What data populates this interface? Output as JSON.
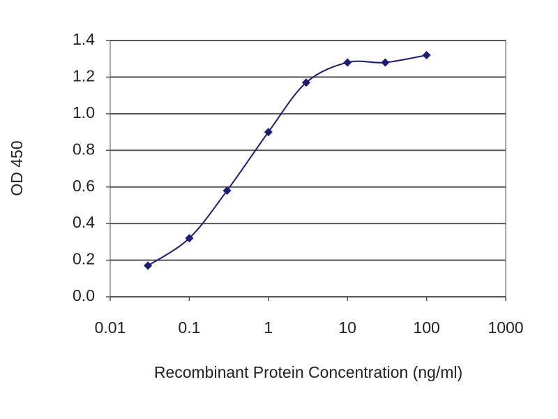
{
  "chart_data": {
    "type": "line",
    "x_label": "Recombinant Protein Concentration (ng/ml)",
    "y_label": "OD 450",
    "x": [
      0.03,
      0.1,
      0.3,
      1,
      3,
      10,
      30,
      100
    ],
    "series": [
      {
        "color": "#1c1c78",
        "values": [
          0.17,
          0.32,
          0.58,
          0.9,
          1.17,
          1.28,
          1.28,
          1.32
        ]
      }
    ],
    "xscale": "log",
    "xlim": [
      0.01,
      1000
    ],
    "xticks": [
      0.01,
      0.1,
      1,
      10,
      100,
      1000
    ],
    "ylim": [
      0,
      1.4
    ],
    "yticks": [
      {
        "value": 0,
        "label": "0.0"
      },
      0.2,
      0.4,
      0.6,
      0.8,
      {
        "value": 1,
        "label": "1.0"
      },
      1.2,
      1.4
    ],
    "grid": true
  }
}
